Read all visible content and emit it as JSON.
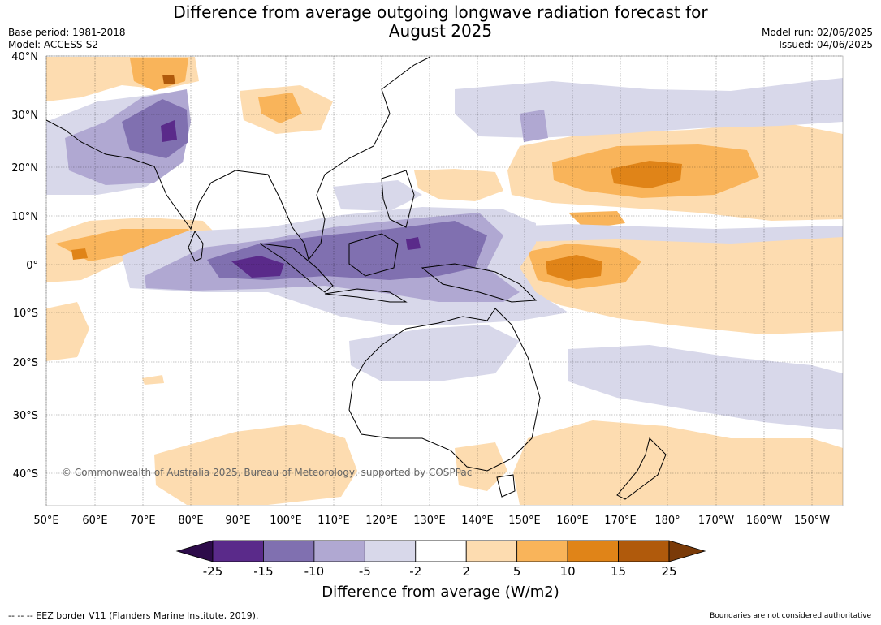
{
  "header": {
    "title_line1": "Difference from average outgoing longwave radiation forecast for",
    "title_line2": "August 2025",
    "base_period": "Base period: 1981-2018",
    "model": "Model: ACCESS-S2",
    "model_run": "Model run: 02/06/2025",
    "issued": "Issued: 04/06/2025"
  },
  "map": {
    "lat_labels": [
      "40°N",
      "30°N",
      "20°N",
      "10°N",
      "0°",
      "10°S",
      "20°S",
      "30°S",
      "40°S"
    ],
    "lon_labels": [
      "50°E",
      "60°E",
      "70°E",
      "80°E",
      "90°E",
      "100°E",
      "110°E",
      "120°E",
      "130°E",
      "140°E",
      "150°E",
      "160°E",
      "170°E",
      "180°",
      "170°W",
      "160°W",
      "150°W"
    ],
    "copyright": "© Commonwealth of Australia 2025, Bureau of Meteorology, supported by COSPPac"
  },
  "legend": {
    "ticks": [
      "-25",
      "-15",
      "-10",
      "-5",
      "-2",
      "2",
      "5",
      "10",
      "15",
      "25"
    ],
    "colors": {
      "below_min": "#2d0b4a",
      "bins": [
        "#5a2a8a",
        "#8070b0",
        "#b0a8d2",
        "#d8d8ea",
        "#ffffff",
        "#fddcb0",
        "#f9b45a",
        "#e08418",
        "#b05a0c"
      ],
      "above_max": "#7a3a08"
    },
    "title": "Difference from average (W/m2)"
  },
  "footer": {
    "eez": "--  --  -- EEZ border V11 (Flanders Marine Institute, 2019).",
    "boundaries": "Boundaries are not considered authoritative"
  }
}
